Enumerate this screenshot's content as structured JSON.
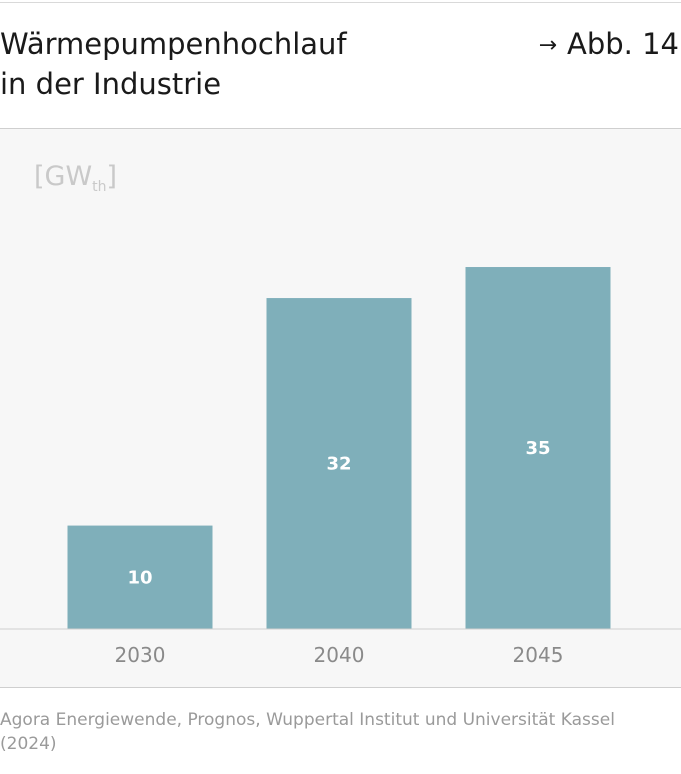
{
  "header": {
    "title_line1": "Wärmepumpenhochlauf",
    "title_line2": "in der Industrie",
    "figure_ref_arrow": "→",
    "figure_ref": "Abb. 14"
  },
  "unit": {
    "main": "GW",
    "sub": "th",
    "open": "[",
    "close": "]"
  },
  "chart_data": {
    "type": "bar",
    "categories": [
      "2030",
      "2040",
      "2045"
    ],
    "values": [
      10,
      32,
      35
    ],
    "data_labels": [
      "10",
      "32",
      "35"
    ],
    "ylabel": "[GWth]",
    "ylim": [
      0,
      38
    ],
    "grid": false,
    "legend": "none",
    "bar_color": "#7fafba",
    "label_color": "#ffffff"
  },
  "source": "Agora Energiewende, Prognos, Wuppertal Institut und Universität Kassel (2024)"
}
